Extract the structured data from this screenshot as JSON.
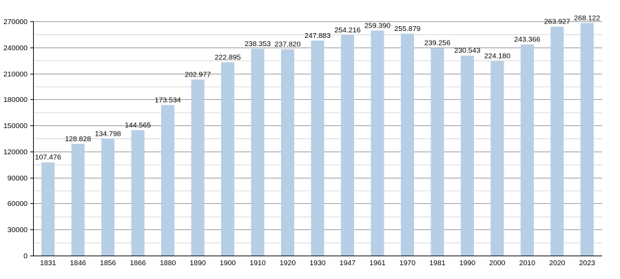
{
  "chart_data": {
    "type": "bar",
    "title": "",
    "xlabel": "",
    "ylabel": "",
    "ylim": [
      0,
      270000
    ],
    "grid": true,
    "y_ticks": [
      "0",
      "30000",
      "60000",
      "90000",
      "120000",
      "150000",
      "180000",
      "210000",
      "240000",
      "270000"
    ],
    "categories": [
      "1831",
      "1846",
      "1856",
      "1866",
      "1880",
      "1890",
      "1900",
      "1910",
      "1920",
      "1930",
      "1947",
      "1961",
      "1970",
      "1981",
      "1990",
      "2000",
      "2010",
      "2020",
      "2023"
    ],
    "values": [
      107476,
      128828,
      134798,
      144565,
      173534,
      202977,
      222895,
      238353,
      237820,
      247883,
      254216,
      259390,
      255879,
      239256,
      230543,
      224180,
      243366,
      263927,
      268122
    ],
    "value_labels": [
      "107.476",
      "128.828",
      "134.798",
      "144.565",
      "173.534",
      "202.977",
      "222.895",
      "238.353",
      "237.820",
      "247.883",
      "254.216",
      "259.390",
      "255.879",
      "239.256",
      "230.543",
      "224.180",
      "243.366",
      "263.927",
      "268.122"
    ],
    "bar_color": "#b6cee6",
    "grid_color": "#999999",
    "minor_grid_color": "#d8d8d8",
    "text_color": "#000000"
  }
}
